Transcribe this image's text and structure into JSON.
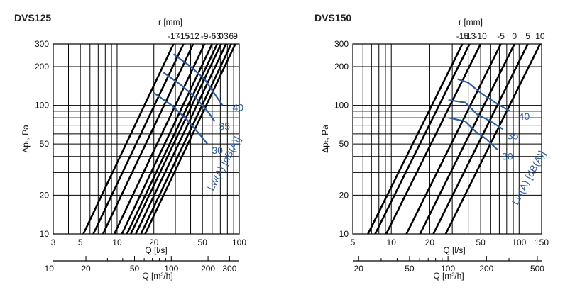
{
  "chart_data": [
    {
      "type": "line",
      "title": "DVS125",
      "xlabel": "Q [l/s]",
      "x2label": "Q [m³/h]",
      "ylabel": "Δpₜ, Pa",
      "toplabel": "r [mm]",
      "xscale": "log",
      "yscale": "log",
      "xlim": [
        3,
        100
      ],
      "ylim": [
        10,
        300
      ],
      "grid": true,
      "x_ticks": [
        "3",
        "5",
        "10",
        "20",
        "50",
        "100"
      ],
      "x_tick_values": [
        3,
        5,
        10,
        20,
        50,
        100
      ],
      "x2_ticks": [
        "10",
        "20",
        "50",
        "100",
        "200",
        "300"
      ],
      "x2_tick_values": [
        10,
        20,
        50,
        100,
        200,
        300
      ],
      "y_ticks": [
        "10",
        "20",
        "50",
        "100",
        "200",
        "300"
      ],
      "y_tick_values": [
        10,
        20,
        50,
        100,
        200,
        300
      ],
      "r_lines": [
        {
          "label": "-17",
          "x_at_top": 29
        },
        {
          "label": "-15",
          "x_at_top": 35
        },
        {
          "label": "-12",
          "x_at_top": 42
        },
        {
          "label": "-9",
          "x_at_top": 52
        },
        {
          "label": "-6",
          "x_at_top": 60
        },
        {
          "label": "-3",
          "x_at_top": 66
        },
        {
          "label": "0",
          "x_at_top": 71
        },
        {
          "label": "3",
          "x_at_top": 78
        },
        {
          "label": "6",
          "x_at_top": 86
        },
        {
          "label": "9",
          "x_at_top": 93
        }
      ],
      "sound_label": "Lw(A) [dB(A)]",
      "series": [
        {
          "name": "40",
          "points": [
            [
              29,
              250
            ],
            [
              40,
              200
            ],
            [
              52,
              160
            ],
            [
              62,
              125
            ],
            [
              73,
              100
            ]
          ]
        },
        {
          "name": "35",
          "points": [
            [
              24,
              180
            ],
            [
              33,
              145
            ],
            [
              44,
              115
            ],
            [
              56,
              88
            ],
            [
              63,
              75
            ]
          ]
        },
        {
          "name": "30",
          "points": [
            [
              20,
              125
            ],
            [
              28,
              100
            ],
            [
              37,
              78
            ],
            [
              47,
              60
            ],
            [
              55,
              50
            ]
          ]
        }
      ]
    },
    {
      "type": "line",
      "title": "DVS150",
      "xlabel": "Q [l/s]",
      "x2label": "Q [m³/h]",
      "ylabel": "Δpₜ, Pa",
      "toplabel": "r [mm]",
      "xscale": "log",
      "yscale": "log",
      "xlim": [
        5,
        150
      ],
      "ylim": [
        10,
        300
      ],
      "grid": true,
      "x_ticks": [
        "5",
        "10",
        "20",
        "50",
        "100",
        "150"
      ],
      "x_tick_values": [
        5,
        10,
        20,
        50,
        100,
        150
      ],
      "x2_ticks": [
        "20",
        "50",
        "100",
        "200",
        "500"
      ],
      "x2_tick_values": [
        20,
        50,
        100,
        200,
        500
      ],
      "y_ticks": [
        "10",
        "20",
        "50",
        "100",
        "200",
        "300"
      ],
      "y_tick_values": [
        10,
        20,
        50,
        100,
        200,
        300
      ],
      "r_lines": [
        {
          "label": "-15",
          "x_at_top": 36
        },
        {
          "label": "-13",
          "x_at_top": 41
        },
        {
          "label": "-10",
          "x_at_top": 50
        },
        {
          "label": "-5",
          "x_at_top": 72
        },
        {
          "label": "0",
          "x_at_top": 92
        },
        {
          "label": "5",
          "x_at_top": 117
        },
        {
          "label": "10",
          "x_at_top": 146
        }
      ],
      "sound_label": "Lw(A) [dB(A)]",
      "series": [
        {
          "name": "40",
          "points": [
            [
              33,
              160
            ],
            [
              40,
              150
            ],
            [
              50,
              125
            ],
            [
              65,
              105
            ],
            [
              85,
              90
            ]
          ]
        },
        {
          "name": "35",
          "points": [
            [
              28,
              110
            ],
            [
              38,
              105
            ],
            [
              47,
              85
            ],
            [
              60,
              75
            ],
            [
              75,
              65
            ]
          ]
        },
        {
          "name": "30",
          "points": [
            [
              28,
              80
            ],
            [
              38,
              75
            ],
            [
              46,
              62
            ],
            [
              55,
              55
            ],
            [
              68,
              45
            ]
          ]
        }
      ]
    }
  ]
}
